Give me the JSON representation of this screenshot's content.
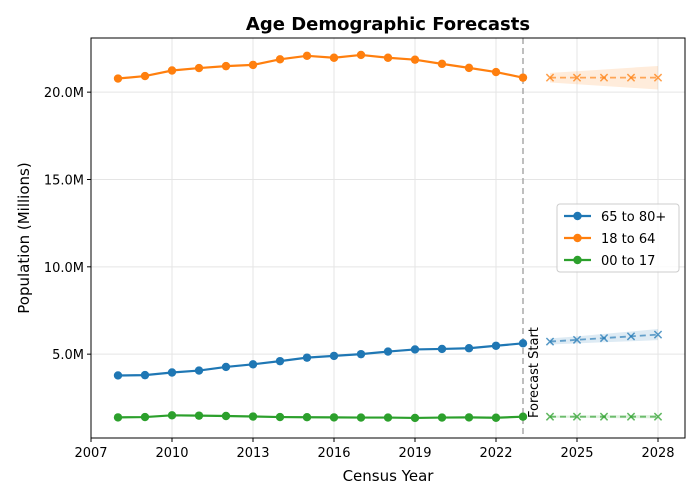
{
  "chart_data": {
    "type": "line",
    "title": "Age Demographic Forecasts",
    "xlabel": "Census Year",
    "ylabel": "Population (Millions)",
    "xlim": [
      2007,
      2029
    ],
    "ylim": [
      0.2,
      23.1
    ],
    "x_ticks": [
      2007,
      2010,
      2013,
      2016,
      2019,
      2022,
      2025,
      2028
    ],
    "x_tick_labels": [
      "2007",
      "2010",
      "2013",
      "2016",
      "2019",
      "2022",
      "2025",
      "2028"
    ],
    "y_ticks": [
      5,
      10,
      15,
      20
    ],
    "y_tick_labels": [
      "5.0M",
      "10.0M",
      "15.0M",
      "20.0M"
    ],
    "grid": true,
    "legend_position": "center-right",
    "forecast_start": 2023,
    "forecast_start_label": "Forecast Start",
    "series": [
      {
        "name": "65 to 80+",
        "color": "#1f77b4",
        "historical": {
          "x": [
            2008,
            2009,
            2010,
            2011,
            2012,
            2013,
            2014,
            2015,
            2016,
            2017,
            2018,
            2019,
            2020,
            2021,
            2022,
            2023
          ],
          "y": [
            3.78,
            3.8,
            3.95,
            4.06,
            4.27,
            4.42,
            4.6,
            4.8,
            4.9,
            5.0,
            5.15,
            5.27,
            5.3,
            5.34,
            5.48,
            5.62
          ]
        },
        "forecast": {
          "x": [
            2024,
            2025,
            2026,
            2027,
            2028
          ],
          "y": [
            5.72,
            5.82,
            5.92,
            6.02,
            6.12
          ],
          "lower": [
            5.55,
            5.62,
            5.68,
            5.74,
            5.8
          ],
          "upper": [
            5.9,
            6.02,
            6.16,
            6.3,
            6.44
          ]
        }
      },
      {
        "name": "18 to 64",
        "color": "#ff7f0e",
        "historical": {
          "x": [
            2008,
            2009,
            2010,
            2011,
            2012,
            2013,
            2014,
            2015,
            2016,
            2017,
            2018,
            2019,
            2020,
            2021,
            2022,
            2023
          ],
          "y": [
            20.78,
            20.92,
            21.24,
            21.38,
            21.49,
            21.56,
            21.88,
            22.08,
            21.97,
            22.13,
            21.97,
            21.86,
            21.62,
            21.39,
            21.15,
            20.83
          ]
        },
        "forecast": {
          "x": [
            2024,
            2025,
            2026,
            2027,
            2028
          ],
          "y": [
            20.83,
            20.83,
            20.83,
            20.83,
            20.83
          ],
          "lower": [
            20.55,
            20.45,
            20.35,
            20.25,
            20.15
          ],
          "upper": [
            21.1,
            21.2,
            21.3,
            21.4,
            21.5
          ]
        }
      },
      {
        "name": "00 to 17",
        "color": "#2ca02c",
        "historical": {
          "x": [
            2008,
            2009,
            2010,
            2011,
            2012,
            2013,
            2014,
            2015,
            2016,
            2017,
            2018,
            2019,
            2020,
            2021,
            2022,
            2023
          ],
          "y": [
            1.38,
            1.4,
            1.5,
            1.48,
            1.46,
            1.43,
            1.4,
            1.39,
            1.38,
            1.37,
            1.37,
            1.35,
            1.37,
            1.38,
            1.36,
            1.42
          ]
        },
        "forecast": {
          "x": [
            2024,
            2025,
            2026,
            2027,
            2028
          ],
          "y": [
            1.42,
            1.42,
            1.42,
            1.42,
            1.42
          ],
          "lower": [
            1.36,
            1.35,
            1.34,
            1.33,
            1.32
          ],
          "upper": [
            1.48,
            1.49,
            1.5,
            1.51,
            1.52
          ]
        }
      }
    ]
  }
}
